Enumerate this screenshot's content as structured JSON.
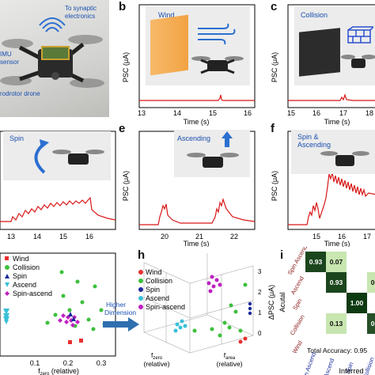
{
  "panels": {
    "a": {
      "letter": "",
      "label_imu": "IMU",
      "label_sensor": "sensor",
      "label_synaptic": "To synaptic",
      "label_electronics": "electronics",
      "label_drone": "rodrotor drone"
    },
    "b": {
      "letter": "b",
      "inset": "Wind",
      "ylabel": "PSC (μA)",
      "xlabel": "Time (s)",
      "ticks": [
        "13",
        "14",
        "15",
        "16"
      ]
    },
    "c": {
      "letter": "c",
      "inset": "Collision",
      "ylabel": "PSC (μA)",
      "xlabel": "Time (s)",
      "ticks": [
        "15",
        "16",
        "17",
        "18"
      ]
    },
    "d": {
      "letter": "",
      "inset": "Spin",
      "ticks": [
        "13",
        "14",
        "15",
        "16"
      ]
    },
    "e": {
      "letter": "e",
      "inset": "Ascending",
      "ylabel": "PSC (μA)",
      "xlabel": "Time (s)",
      "ticks": [
        "20",
        "21",
        "22"
      ]
    },
    "f": {
      "letter": "f",
      "inset_line1": "Spin &",
      "inset_line2": "Ascending",
      "ylabel": "PSC (μA)",
      "xlabel": "Time (s)",
      "ticks": [
        "15",
        "16",
        "17"
      ]
    },
    "g": {
      "legend": [
        "Wind",
        "Collision",
        "Spin",
        "Ascend",
        "Spin-ascend"
      ],
      "xlabel_main": "f",
      "xlabel_sub": "zero",
      "xlabel_rest": " (relative)",
      "ticks": [
        "0.1",
        "0.2",
        "0.3"
      ]
    },
    "arrow": {
      "line1": "Higher",
      "line2": "Dimension"
    },
    "h": {
      "letter": "h",
      "legend": [
        "Wind",
        "Collision",
        "Spin",
        "Ascend",
        "Spin-ascend"
      ],
      "zlabel": "ΔPSC (μA)",
      "zticks": [
        "3",
        "2",
        "1",
        "0"
      ],
      "xlabel_main": "f",
      "xlabel_sub": "zero",
      "xlabel_rest": "(relative)",
      "ylabel_main": "f",
      "ylabel_sub": "area",
      "ylabel_rest": "(relative)"
    },
    "i": {
      "letter": "i",
      "rows": [
        "Spin Ascend",
        "Ascend",
        "Spin",
        "Collision",
        "Wind"
      ],
      "cols": [
        "Spin Ascend",
        "Ascend",
        "Spin",
        "Collision",
        "Wind"
      ],
      "row_axis": "Acutal",
      "col_axis": "Inferred",
      "cells": [
        {
          "row": 0,
          "col": 0,
          "value": "0.93",
          "level": 0.93
        },
        {
          "row": 0,
          "col": 1,
          "value": "0.07",
          "level": 0.07
        },
        {
          "row": 1,
          "col": 1,
          "value": "0.93",
          "level": 0.93
        },
        {
          "row": 1,
          "col": 3,
          "value": "0.07",
          "level": 0.07
        },
        {
          "row": 2,
          "col": 2,
          "value": "1.00",
          "level": 1.0
        },
        {
          "row": 3,
          "col": 1,
          "value": "0.13",
          "level": 0.13
        },
        {
          "row": 3,
          "col": 3,
          "value": "0.87",
          "level": 0.87
        },
        {
          "row": 4,
          "col": 4,
          "value": "",
          "level": 1.0
        }
      ],
      "accuracy": "Total Accuracy: 0.95"
    }
  },
  "colors": {
    "wind": "#e83030",
    "collision": "#3cc03c",
    "spin": "#1a2a9a",
    "ascend": "#38c0d8",
    "spin_ascend": "#c020c0",
    "trace": "#d81818",
    "matrix_high": "#0e3a12",
    "matrix_low": "#c8e6b0"
  },
  "chart_data": [
    {
      "type": "line",
      "panel": "b",
      "x_range": [
        13,
        16.5
      ],
      "series_desc": "Wind"
    },
    {
      "type": "line",
      "panel": "c",
      "x_range": [
        15,
        18
      ],
      "series_desc": "Collision"
    },
    {
      "type": "line",
      "panel": "d",
      "x_range": [
        12.8,
        16.5
      ],
      "series_desc": "Spin"
    },
    {
      "type": "line",
      "panel": "e",
      "x_range": [
        19.5,
        22.6
      ],
      "series_desc": "Ascending"
    },
    {
      "type": "line",
      "panel": "f",
      "x_range": [
        14.5,
        17.5
      ],
      "series_desc": "Spin & Ascending"
    },
    {
      "type": "scatter",
      "panel": "g",
      "xlim": [
        0.05,
        0.35
      ]
    },
    {
      "type": "scatter",
      "panel": "h"
    },
    {
      "type": "heatmap",
      "panel": "i"
    }
  ]
}
